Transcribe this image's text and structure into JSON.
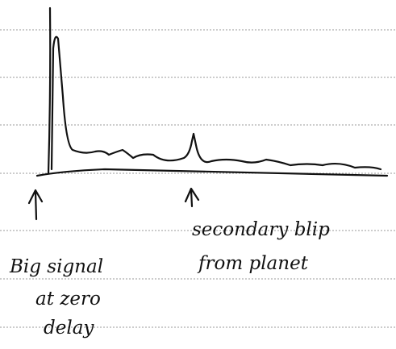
{
  "annotations": [
    {
      "lines": [
        "Big signal",
        "at zero",
        "delay"
      ]
    },
    {
      "lines": [
        "secondary blip",
        "from planet"
      ]
    }
  ]
}
